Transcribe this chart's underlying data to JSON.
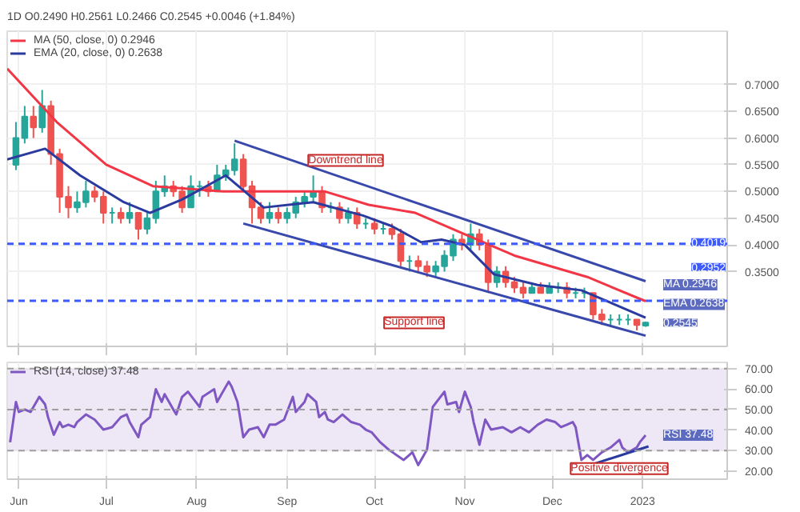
{
  "chart_data": [
    {
      "type": "candlestick",
      "title": "1D O0.2490 H0.2561 L0.2466 C0.2545 +0.0046 (+1.84%)",
      "x": [
        "2022-05-31",
        "2022-06-03",
        "2022-06-06",
        "2022-06-09",
        "2022-06-12",
        "2022-06-15",
        "2022-06-18",
        "2022-06-21",
        "2022-06-24",
        "2022-06-27",
        "2022-06-30",
        "2022-07-03",
        "2022-07-06",
        "2022-07-09",
        "2022-07-12",
        "2022-07-15",
        "2022-07-18",
        "2022-07-21",
        "2022-07-24",
        "2022-07-27",
        "2022-07-30",
        "2022-08-02",
        "2022-08-05",
        "2022-08-08",
        "2022-08-11",
        "2022-08-14",
        "2022-08-17",
        "2022-08-20",
        "2022-08-23",
        "2022-08-26",
        "2022-08-29",
        "2022-09-01",
        "2022-09-04",
        "2022-09-07",
        "2022-09-10",
        "2022-09-13",
        "2022-09-16",
        "2022-09-19",
        "2022-09-22",
        "2022-09-25",
        "2022-09-28",
        "2022-10-01",
        "2022-10-04",
        "2022-10-07",
        "2022-10-10",
        "2022-10-13",
        "2022-10-16",
        "2022-10-19",
        "2022-10-22",
        "2022-10-25",
        "2022-10-28",
        "2022-10-31",
        "2022-11-03",
        "2022-11-06",
        "2022-11-09",
        "2022-11-12",
        "2022-11-15",
        "2022-11-18",
        "2022-11-21",
        "2022-11-24",
        "2022-11-27",
        "2022-11-30",
        "2022-12-03",
        "2022-12-06",
        "2022-12-09",
        "2022-12-12",
        "2022-12-15",
        "2022-12-18",
        "2022-12-21",
        "2022-12-24",
        "2022-12-27",
        "2022-12-30",
        "2023-01-02"
      ],
      "ohlc": [
        [
          0.55,
          0.63,
          0.54,
          0.6
        ],
        [
          0.6,
          0.66,
          0.59,
          0.64
        ],
        [
          0.64,
          0.66,
          0.6,
          0.62
        ],
        [
          0.62,
          0.69,
          0.61,
          0.66
        ],
        [
          0.66,
          0.67,
          0.55,
          0.57
        ],
        [
          0.57,
          0.58,
          0.46,
          0.49
        ],
        [
          0.49,
          0.51,
          0.45,
          0.47
        ],
        [
          0.47,
          0.5,
          0.46,
          0.48
        ],
        [
          0.48,
          0.52,
          0.47,
          0.5
        ],
        [
          0.5,
          0.51,
          0.48,
          0.49
        ],
        [
          0.49,
          0.5,
          0.44,
          0.46
        ],
        [
          0.46,
          0.47,
          0.44,
          0.46
        ],
        [
          0.46,
          0.47,
          0.44,
          0.45
        ],
        [
          0.45,
          0.48,
          0.44,
          0.46
        ],
        [
          0.46,
          0.46,
          0.41,
          0.43
        ],
        [
          0.43,
          0.46,
          0.42,
          0.45
        ],
        [
          0.45,
          0.52,
          0.44,
          0.5
        ],
        [
          0.5,
          0.53,
          0.49,
          0.51
        ],
        [
          0.51,
          0.52,
          0.49,
          0.5
        ],
        [
          0.5,
          0.51,
          0.46,
          0.47
        ],
        [
          0.47,
          0.53,
          0.47,
          0.51
        ],
        [
          0.51,
          0.52,
          0.49,
          0.51
        ],
        [
          0.51,
          0.52,
          0.49,
          0.5
        ],
        [
          0.5,
          0.55,
          0.5,
          0.53
        ],
        [
          0.53,
          0.55,
          0.52,
          0.54
        ],
        [
          0.54,
          0.59,
          0.53,
          0.56
        ],
        [
          0.56,
          0.57,
          0.5,
          0.51
        ],
        [
          0.51,
          0.52,
          0.44,
          0.47
        ],
        [
          0.47,
          0.48,
          0.44,
          0.45
        ],
        [
          0.45,
          0.48,
          0.44,
          0.46
        ],
        [
          0.46,
          0.47,
          0.44,
          0.45
        ],
        [
          0.45,
          0.47,
          0.44,
          0.46
        ],
        [
          0.46,
          0.49,
          0.45,
          0.48
        ],
        [
          0.48,
          0.5,
          0.47,
          0.49
        ],
        [
          0.49,
          0.53,
          0.48,
          0.5
        ],
        [
          0.5,
          0.51,
          0.46,
          0.47
        ],
        [
          0.47,
          0.48,
          0.46,
          0.47
        ],
        [
          0.47,
          0.48,
          0.44,
          0.45
        ],
        [
          0.45,
          0.47,
          0.44,
          0.46
        ],
        [
          0.46,
          0.47,
          0.43,
          0.44
        ],
        [
          0.44,
          0.45,
          0.43,
          0.44
        ],
        [
          0.44,
          0.45,
          0.42,
          0.43
        ],
        [
          0.43,
          0.44,
          0.42,
          0.43
        ],
        [
          0.43,
          0.44,
          0.41,
          0.42
        ],
        [
          0.42,
          0.43,
          0.36,
          0.37
        ],
        [
          0.37,
          0.38,
          0.35,
          0.37
        ],
        [
          0.37,
          0.38,
          0.35,
          0.36
        ],
        [
          0.36,
          0.37,
          0.34,
          0.35
        ],
        [
          0.35,
          0.37,
          0.34,
          0.36
        ],
        [
          0.36,
          0.39,
          0.35,
          0.38
        ],
        [
          0.38,
          0.42,
          0.37,
          0.41
        ],
        [
          0.41,
          0.42,
          0.39,
          0.4
        ],
        [
          0.4,
          0.44,
          0.39,
          0.42
        ],
        [
          0.42,
          0.43,
          0.39,
          0.4
        ],
        [
          0.4,
          0.41,
          0.31,
          0.33
        ],
        [
          0.33,
          0.36,
          0.32,
          0.35
        ],
        [
          0.35,
          0.36,
          0.32,
          0.33
        ],
        [
          0.33,
          0.34,
          0.31,
          0.32
        ],
        [
          0.32,
          0.33,
          0.3,
          0.31
        ],
        [
          0.31,
          0.33,
          0.31,
          0.32
        ],
        [
          0.32,
          0.33,
          0.31,
          0.31
        ],
        [
          0.31,
          0.33,
          0.31,
          0.32
        ],
        [
          0.32,
          0.33,
          0.31,
          0.32
        ],
        [
          0.32,
          0.33,
          0.3,
          0.31
        ],
        [
          0.31,
          0.32,
          0.3,
          0.31
        ],
        [
          0.31,
          0.32,
          0.3,
          0.31
        ],
        [
          0.31,
          0.31,
          0.26,
          0.27
        ],
        [
          0.27,
          0.28,
          0.25,
          0.26
        ],
        [
          0.26,
          0.27,
          0.25,
          0.26
        ],
        [
          0.26,
          0.27,
          0.25,
          0.26
        ],
        [
          0.26,
          0.27,
          0.25,
          0.26
        ],
        [
          0.26,
          0.26,
          0.24,
          0.25
        ],
        [
          0.249,
          0.2561,
          0.2466,
          0.2545
        ]
      ],
      "series": [
        {
          "type": "line",
          "name": "MA (50, close, 0) 0.2946",
          "color": "#f23645",
          "x": [
            "2022-05-28",
            "2022-06-14",
            "2022-07-01",
            "2022-07-17",
            "2022-08-10",
            "2022-08-30",
            "2022-09-14",
            "2022-09-29",
            "2022-10-15",
            "2022-11-01",
            "2022-11-18",
            "2022-12-13",
            "2023-01-02"
          ],
          "values": [
            0.73,
            0.63,
            0.55,
            0.51,
            0.5,
            0.5,
            0.5,
            0.475,
            0.46,
            0.42,
            0.38,
            0.34,
            0.2946
          ]
        },
        {
          "type": "line",
          "name": "EMA (20, close, 0) 0.2638",
          "color": "#2a3a9e",
          "x": [
            "2022-05-28",
            "2022-06-10",
            "2022-06-22",
            "2022-07-07",
            "2022-07-16",
            "2022-07-27",
            "2022-08-11",
            "2022-08-24",
            "2022-09-10",
            "2022-09-27",
            "2022-10-07",
            "2022-10-17",
            "2022-10-24",
            "2022-11-01",
            "2022-11-11",
            "2022-11-26",
            "2022-12-11",
            "2023-01-02"
          ],
          "values": [
            0.56,
            0.58,
            0.53,
            0.48,
            0.46,
            0.485,
            0.53,
            0.47,
            0.48,
            0.455,
            0.435,
            0.405,
            0.41,
            0.4,
            0.345,
            0.325,
            0.315,
            0.2638
          ]
        },
        {
          "type": "line",
          "color": "#3949ab",
          "x": [
            "2022-08-14",
            "2023-01-02"
          ],
          "values": [
            0.595,
            0.332
          ]
        },
        {
          "type": "line",
          "color": "#3949ab",
          "x": [
            "2022-08-17",
            "2023-01-02"
          ],
          "values": [
            0.44,
            0.23
          ]
        }
      ],
      "xlim": [
        "2022-05-28",
        "2023-01-30"
      ],
      "xticks": [
        {
          "value": "2022-06-01",
          "label": null
        },
        {
          "value": "2022-07-01",
          "label": null
        },
        {
          "value": "2022-08-01",
          "label": null
        },
        {
          "value": "2022-09-01",
          "label": null
        },
        {
          "value": "2022-10-01",
          "label": null
        },
        {
          "value": "2022-11-01",
          "label": null
        },
        {
          "value": "2022-12-01",
          "label": null
        },
        {
          "value": "2023-01-01",
          "label": null
        }
      ],
      "ylim": [
        0.21,
        0.8
      ],
      "yticks": [
        {
          "value": 0.35,
          "label": "0.3500"
        },
        {
          "value": 0.4,
          "label": "0.4000"
        },
        {
          "value": 0.45,
          "label": "0.4500"
        },
        {
          "value": 0.5,
          "label": "0.5000"
        },
        {
          "value": 0.55,
          "label": "0.5500"
        },
        {
          "value": 0.6,
          "label": "0.6000"
        },
        {
          "value": 0.65,
          "label": "0.6500"
        },
        {
          "value": 0.7,
          "label": "0.7000"
        }
      ],
      "ref_lines": [
        {
          "axis": "y",
          "value": 0.4019,
          "label": "0.4019",
          "color": "#3d5afe",
          "line_style": "dashed"
        },
        {
          "axis": "y",
          "value": 0.2952,
          "label": "0.2952",
          "color": "#3d5afe",
          "line_style": "dashed"
        }
      ],
      "annotations": [
        "Downtrend line",
        "Support line",
        {
          "text": "MA 0.2946",
          "x": "2023-01-02",
          "y": 0.2946
        },
        {
          "text": "EMA 0.2638",
          "x": "2023-01-02",
          "y": 0.2638
        },
        {
          "text": "0.2545",
          "x": "2023-01-02",
          "y": 0.2545
        }
      ],
      "grid": true,
      "legend": "top left",
      "tick_labels": "y"
    },
    {
      "type": "line",
      "series": [
        {
          "type": "line",
          "name": "RSI (14, close) 37.48",
          "color": "#7e57c2",
          "x": [
            "2022-05-29",
            "2022-05-31",
            "2022-06-01",
            "2022-06-03",
            "2022-06-05",
            "2022-06-07",
            "2022-06-08",
            "2022-06-10",
            "2022-06-11",
            "2022-06-13",
            "2022-06-15",
            "2022-06-16",
            "2022-06-18",
            "2022-06-20",
            "2022-06-21",
            "2022-06-24",
            "2022-06-27",
            "2022-06-30",
            "2022-07-03",
            "2022-07-06",
            "2022-07-08",
            "2022-07-09",
            "2022-07-12",
            "2022-07-13",
            "2022-07-16",
            "2022-07-18",
            "2022-07-20",
            "2022-07-21",
            "2022-07-24",
            "2022-07-25",
            "2022-07-27",
            "2022-07-29",
            "2022-07-31",
            "2022-08-02",
            "2022-08-03",
            "2022-08-07",
            "2022-08-08",
            "2022-08-10",
            "2022-08-12",
            "2022-08-13",
            "2022-08-15",
            "2022-08-17",
            "2022-08-19",
            "2022-08-22",
            "2022-08-24",
            "2022-08-26",
            "2022-08-28",
            "2022-08-31",
            "2022-09-03",
            "2022-09-04",
            "2022-09-07",
            "2022-09-08",
            "2022-09-11",
            "2022-09-12",
            "2022-09-14",
            "2022-09-15",
            "2022-09-17",
            "2022-09-20",
            "2022-09-23",
            "2022-09-26",
            "2022-09-28",
            "2022-09-30",
            "2022-10-03",
            "2022-10-06",
            "2022-10-11",
            "2022-10-14",
            "2022-10-16",
            "2022-10-19",
            "2022-10-21",
            "2022-10-23",
            "2022-10-25",
            "2022-10-26",
            "2022-10-29",
            "2022-10-30",
            "2022-11-01",
            "2022-11-03",
            "2022-11-04",
            "2022-11-06",
            "2022-11-08",
            "2022-11-10",
            "2022-11-14",
            "2022-11-17",
            "2022-11-20",
            "2022-11-23",
            "2022-11-26",
            "2022-11-29",
            "2022-12-02",
            "2022-12-04",
            "2022-12-06",
            "2022-12-08",
            "2022-12-09",
            "2022-12-11",
            "2022-12-13",
            "2022-12-15",
            "2022-12-18",
            "2022-12-21",
            "2022-12-24",
            "2022-12-25",
            "2022-12-27",
            "2022-12-30",
            "2022-12-31",
            "2023-01-02"
          ],
          "values": [
            34,
            53.7,
            48.8,
            50,
            48.8,
            53.7,
            56.2,
            52.5,
            46.3,
            37.7,
            43.9,
            41.4,
            42.6,
            41.4,
            43.9,
            47.6,
            45.1,
            40.2,
            41.4,
            46.3,
            47.6,
            43.9,
            36.5,
            42.6,
            46.3,
            59.9,
            53.7,
            57.5,
            50,
            47.6,
            56.2,
            58.7,
            55,
            51.3,
            56.2,
            59.9,
            53.7,
            58.7,
            63.6,
            61.2,
            53.7,
            36.5,
            40.2,
            41.4,
            36.5,
            42.6,
            42.6,
            45.1,
            56.2,
            48.8,
            53.7,
            57.5,
            53.7,
            46.3,
            48.8,
            45.1,
            43.9,
            47.6,
            43.9,
            42.6,
            40.2,
            38.9,
            34,
            30.3,
            25.4,
            29.1,
            22.9,
            30.3,
            51.3,
            55,
            58.7,
            52.5,
            53.7,
            48.8,
            58.7,
            51.3,
            43.9,
            32.8,
            45.1,
            40.2,
            41.4,
            38.9,
            41.4,
            38.9,
            42.6,
            45.1,
            43.9,
            41.4,
            42.6,
            43.9,
            41.4,
            25.4,
            27.8,
            25.4,
            29.1,
            31.5,
            35.2,
            31.5,
            29.1,
            31.5,
            34,
            37.48
          ]
        },
        {
          "type": "line",
          "color": "#2a3a9e",
          "x": [
            "2022-12-14",
            "2023-01-03"
          ],
          "values": [
            22.9,
            32
          ]
        }
      ],
      "xlim": [
        "2022-05-28",
        "2023-01-30"
      ],
      "xticks": [
        {
          "value": "2022-06-01",
          "label": "Jun"
        },
        {
          "value": "2022-07-01",
          "label": "Jul"
        },
        {
          "value": "2022-08-01",
          "label": "Aug"
        },
        {
          "value": "2022-09-01",
          "label": "Sep"
        },
        {
          "value": "2022-10-01",
          "label": "Oct"
        },
        {
          "value": "2022-11-01",
          "label": "Nov"
        },
        {
          "value": "2022-12-01",
          "label": "Dec"
        },
        {
          "value": "2023-01-01",
          "label": "2023"
        }
      ],
      "ylim": [
        16,
        73
      ],
      "yticks": [
        {
          "value": 20,
          "label": "20.00"
        },
        {
          "value": 30,
          "label": "30.00"
        },
        {
          "value": 40,
          "label": "40.00"
        },
        {
          "value": 50,
          "label": "50.00"
        },
        {
          "value": 60,
          "label": "60.00"
        },
        {
          "value": 70,
          "label": "70.00"
        }
      ],
      "bands": [
        {
          "axis": "y",
          "from": 30,
          "to": 70,
          "color": "#ede7f6"
        }
      ],
      "ref_lines": [
        {
          "axis": "y",
          "value": 70,
          "color": "#9e9e9e",
          "line_style": "dashed"
        },
        {
          "axis": "y",
          "value": 50,
          "color": "#9e9e9e",
          "line_style": "dashed"
        },
        {
          "axis": "y",
          "value": 30,
          "color": "#9e9e9e",
          "line_style": "dashed"
        }
      ],
      "annotations": [
        "Positive divergence",
        {
          "text": "RSI 37.48",
          "x": "2023-01-02",
          "y": 37.48
        }
      ],
      "grid": "x",
      "legend": "top left"
    }
  ]
}
